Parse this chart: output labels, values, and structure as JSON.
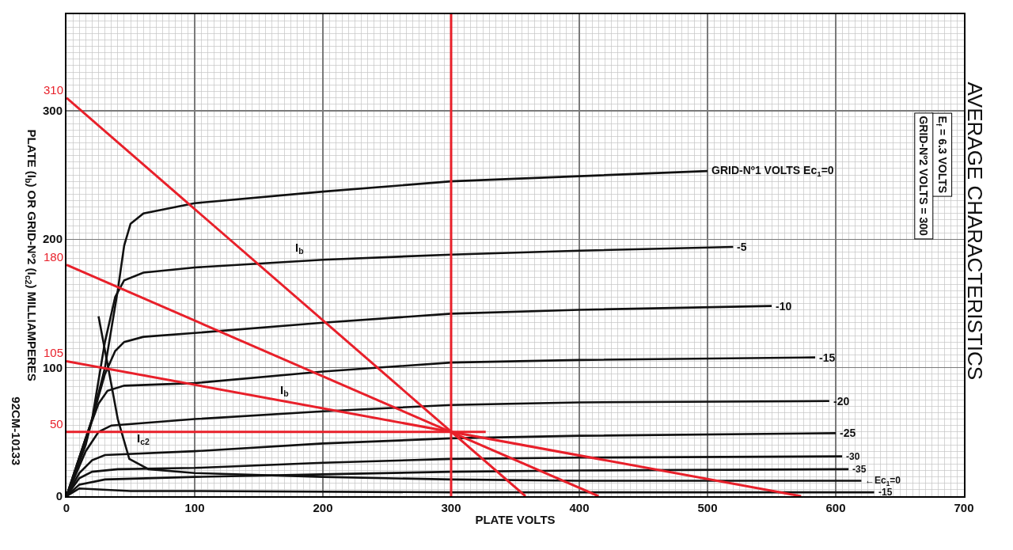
{
  "chart_data": {
    "type": "line",
    "title": "AVERAGE CHARACTERISTICS",
    "xlabel": "PLATE VOLTS",
    "ylabel": "PLATE (I$_{b}$) OR GRID-Nº2 (I$_{c2}$) MILLIAMPERES",
    "xlim": [
      0,
      700
    ],
    "ylim": [
      0,
      375
    ],
    "xticks": [
      0,
      100,
      200,
      300,
      400,
      500,
      600,
      700
    ],
    "yticks": [
      0,
      100,
      200,
      300
    ],
    "grid": true,
    "legend": false,
    "marker": "none",
    "line_style": "solid",
    "series": [
      {
        "name": "GRID-Nº1 VOLTS Ec$_{1}$=0",
        "color": "#111111",
        "x": [
          0,
          15,
          30,
          40,
          45,
          50,
          60,
          100,
          200,
          300,
          400,
          500
        ],
        "values": [
          0,
          40,
          100,
          160,
          195,
          212,
          220,
          228,
          237,
          245,
          249,
          253
        ]
      },
      {
        "name": "-5",
        "color": "#111111",
        "x": [
          0,
          20,
          30,
          38,
          45,
          60,
          100,
          200,
          300,
          400,
          520
        ],
        "values": [
          0,
          60,
          120,
          155,
          168,
          174,
          178,
          184,
          188,
          191,
          194
        ]
      },
      {
        "name": "-10",
        "color": "#111111",
        "x": [
          0,
          20,
          30,
          38,
          45,
          60,
          100,
          200,
          300,
          400,
          550
        ],
        "values": [
          0,
          60,
          95,
          113,
          120,
          124,
          127,
          135,
          142,
          145,
          148
        ]
      },
      {
        "name": "-15",
        "color": "#111111",
        "x": [
          0,
          15,
          25,
          32,
          45,
          100,
          200,
          300,
          400,
          584
        ],
        "values": [
          0,
          45,
          72,
          82,
          86,
          88,
          97,
          104,
          106,
          108
        ]
      },
      {
        "name": "-20",
        "color": "#111111",
        "x": [
          0,
          15,
          25,
          35,
          100,
          200,
          300,
          400,
          595
        ],
        "values": [
          0,
          35,
          50,
          55,
          60,
          66,
          71,
          73,
          74
        ]
      },
      {
        "name": "-25",
        "color": "#111111",
        "x": [
          0,
          10,
          20,
          30,
          100,
          200,
          300,
          400,
          600
        ],
        "values": [
          0,
          18,
          28,
          32,
          35,
          41,
          45,
          47,
          49
        ]
      },
      {
        "name": "-30",
        "color": "#111111",
        "x": [
          0,
          10,
          20,
          40,
          100,
          200,
          300,
          400,
          605
        ],
        "values": [
          0,
          14,
          19,
          21,
          22,
          26,
          29,
          30,
          31
        ]
      },
      {
        "name": "-35",
        "color": "#111111",
        "x": [
          0,
          10,
          30,
          100,
          200,
          300,
          400,
          610
        ],
        "values": [
          0,
          9,
          13,
          15,
          17,
          19,
          20,
          21
        ]
      },
      {
        "name": "←Ec$_{1}$=0",
        "color": "#111111",
        "x": [
          25,
          32,
          40,
          49,
          64,
          100,
          200,
          300,
          400,
          500,
          620
        ],
        "values": [
          140,
          103,
          60,
          29,
          21,
          18,
          15,
          13,
          12,
          12,
          12
        ]
      },
      {
        "name": "-15",
        "color": "#111111",
        "x": [
          0,
          10,
          50,
          100,
          300,
          600,
          630
        ],
        "values": [
          0,
          6,
          4,
          4,
          3,
          3,
          3
        ]
      },
      {
        "color": "#e8202a",
        "x": [
          0,
          358
        ],
        "values": [
          310,
          0
        ],
        "value_labels": [
          "310",
          null
        ]
      },
      {
        "color": "#e8202a",
        "x": [
          0,
          415
        ],
        "values": [
          180,
          0
        ],
        "value_labels": [
          "180",
          null
        ]
      },
      {
        "color": "#e8202a",
        "x": [
          0,
          573
        ],
        "values": [
          105,
          0
        ],
        "value_labels": [
          "105",
          null
        ]
      },
      {
        "color": "#e8202a",
        "x": [
          0,
          327
        ],
        "values": [
          50,
          50
        ],
        "value_labels": [
          "50",
          null
        ]
      }
    ],
    "ref_lines": [
      {
        "axis": "x",
        "value": 300,
        "color": "#e8202a"
      }
    ],
    "annotations": [
      "I$_{b}$",
      "I$_{b}$",
      "I$_{c2}$",
      "E$_{f}$ = 6.3 VOLTS",
      "GRID-Nº2 VOLTS = 300",
      "92CM-10133"
    ]
  }
}
